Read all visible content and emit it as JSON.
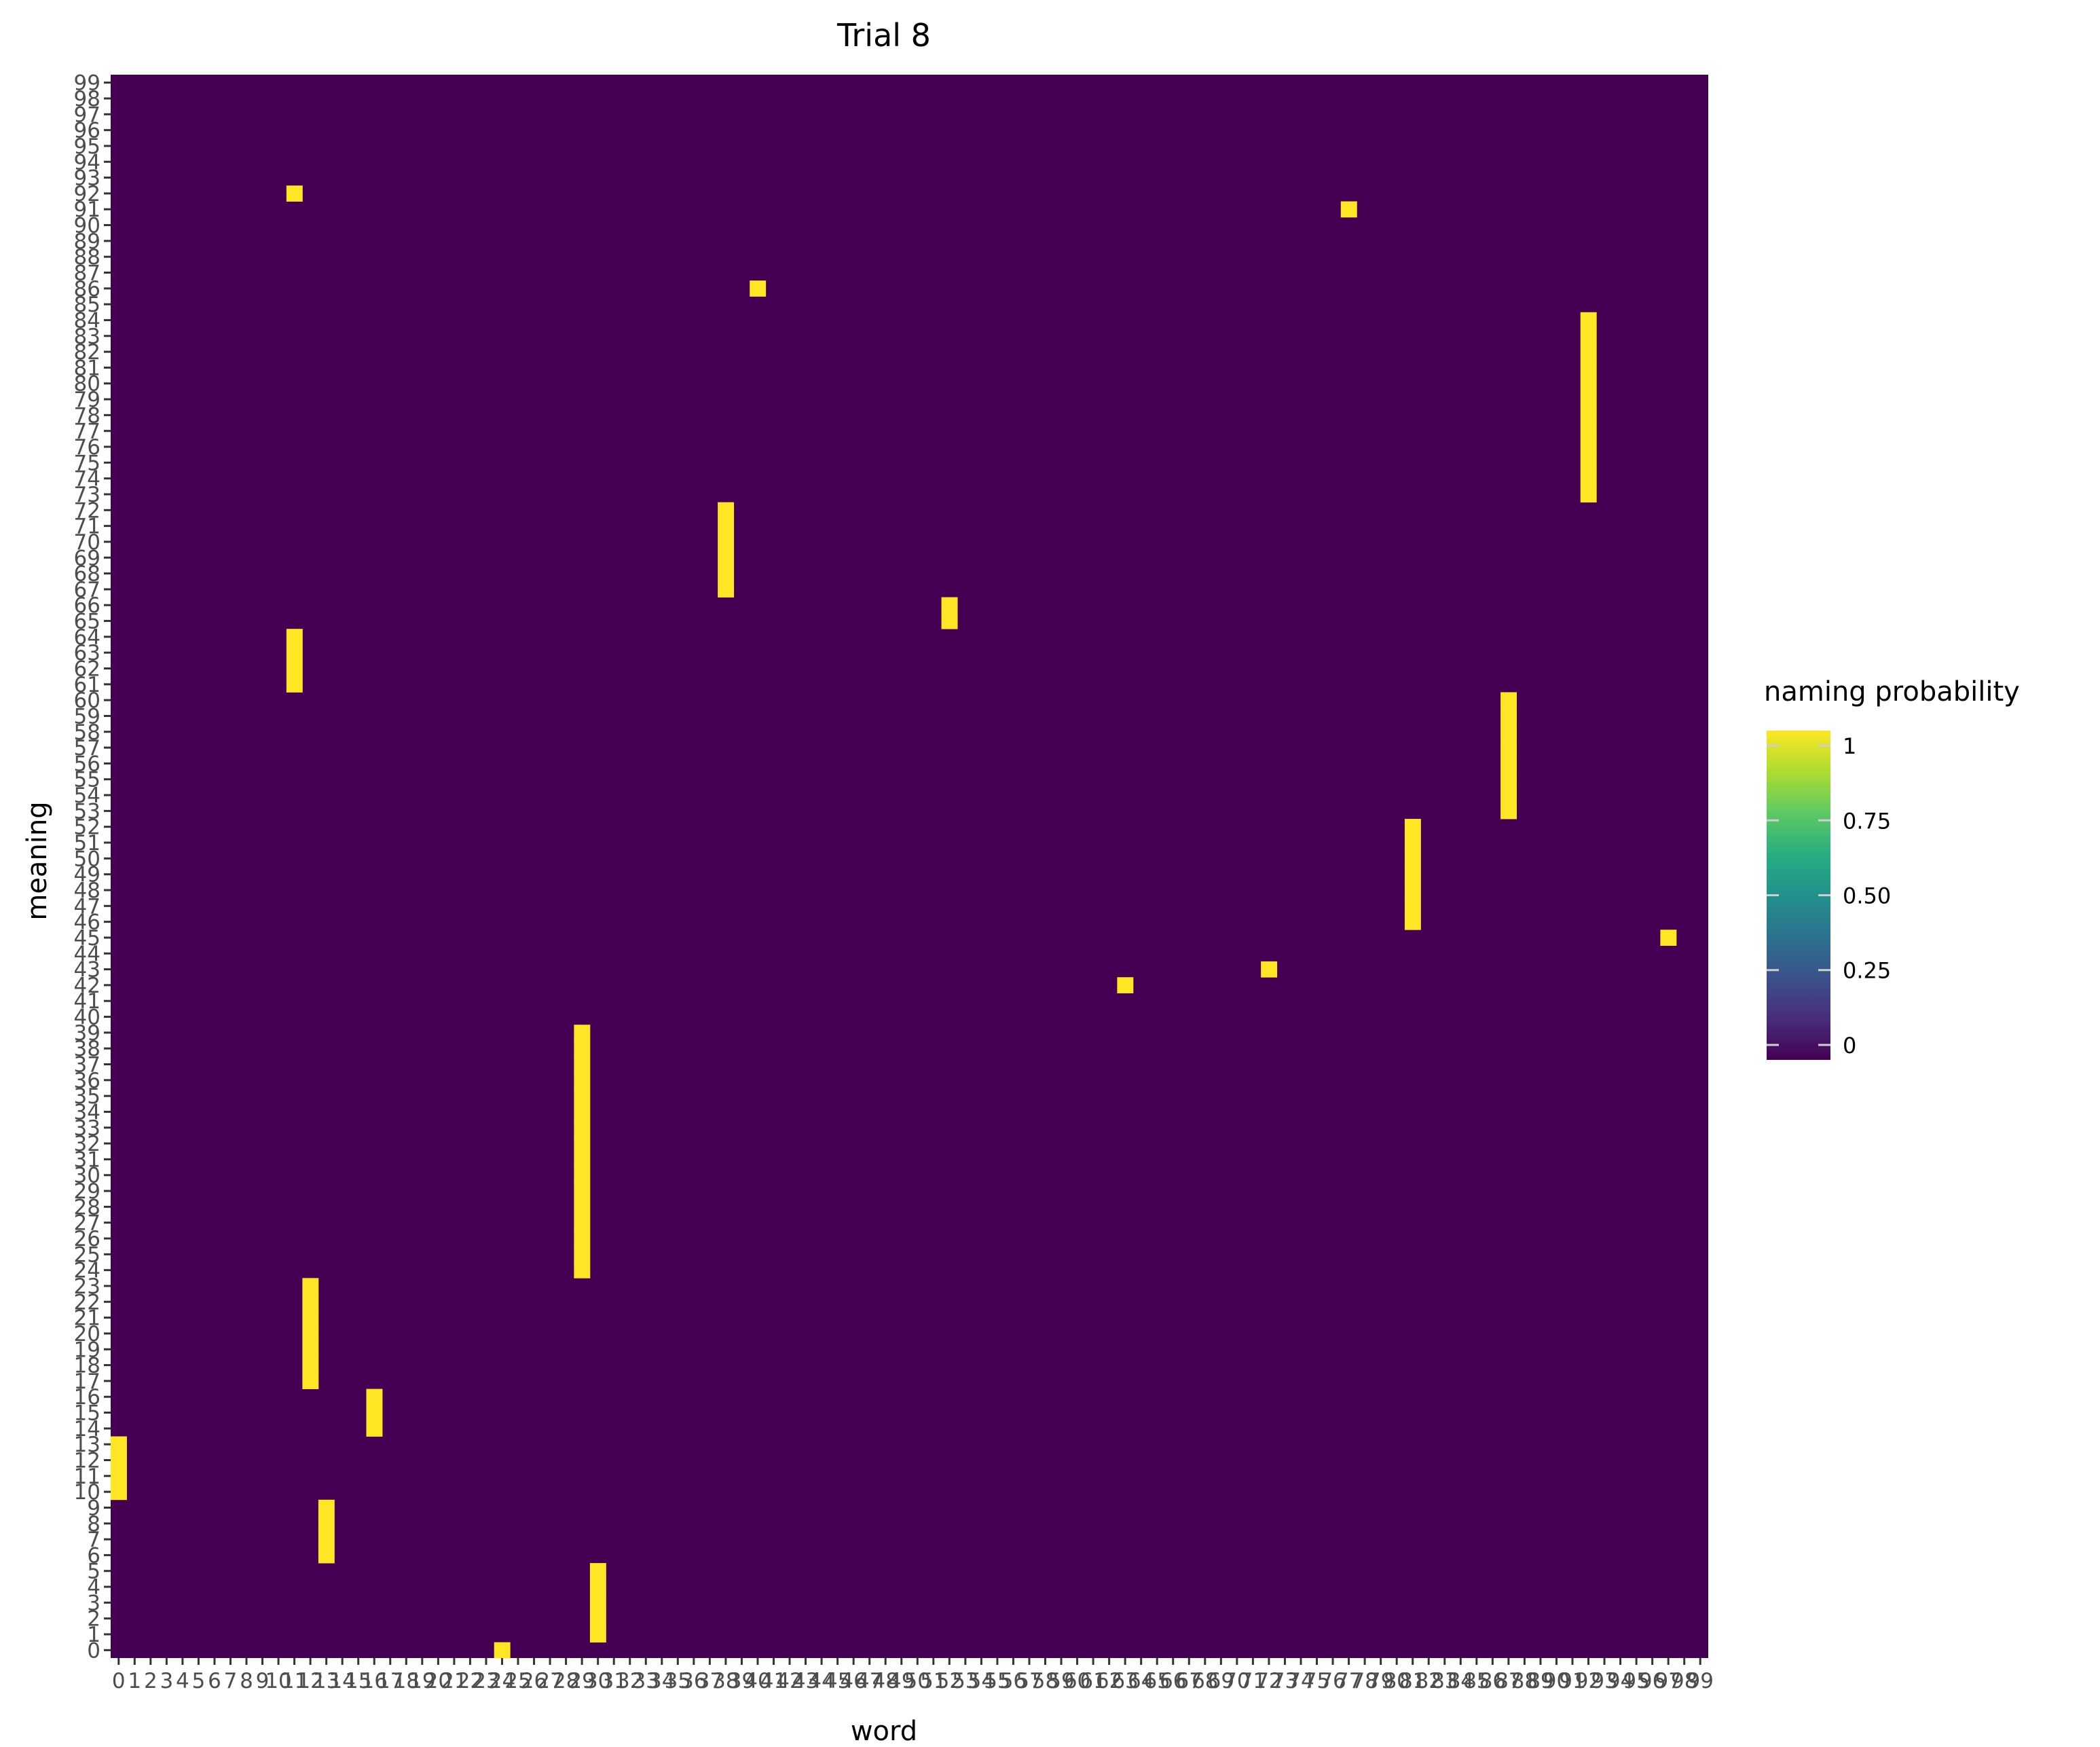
{
  "chart_data": {
    "type": "heatmap",
    "title": "Trial 8",
    "xlabel": "word",
    "ylabel": "meaning",
    "x_categories": [
      0,
      1,
      2,
      3,
      4,
      5,
      6,
      7,
      8,
      9,
      10,
      11,
      12,
      13,
      14,
      15,
      16,
      17,
      18,
      19,
      20,
      21,
      22,
      23,
      24,
      25,
      26,
      27,
      28,
      29,
      30,
      31,
      32,
      33,
      34,
      35,
      36,
      37,
      38,
      39,
      40,
      41,
      42,
      43,
      44,
      45,
      46,
      47,
      48,
      49,
      50,
      51,
      52,
      53,
      54,
      55,
      56,
      57,
      58,
      59,
      60,
      61,
      62,
      63,
      64,
      65,
      66,
      67,
      68,
      69,
      70,
      71,
      72,
      73,
      74,
      75,
      76,
      77,
      78,
      79,
      80,
      81,
      82,
      83,
      84,
      85,
      86,
      87,
      88,
      89,
      90,
      91,
      92,
      93,
      94,
      95,
      96,
      97,
      98,
      99
    ],
    "y_categories": [
      0,
      1,
      2,
      3,
      4,
      5,
      6,
      7,
      8,
      9,
      10,
      11,
      12,
      13,
      14,
      15,
      16,
      17,
      18,
      19,
      20,
      21,
      22,
      23,
      24,
      25,
      26,
      27,
      28,
      29,
      30,
      31,
      32,
      33,
      34,
      35,
      36,
      37,
      38,
      39,
      40,
      41,
      42,
      43,
      44,
      45,
      46,
      47,
      48,
      49,
      50,
      51,
      52,
      53,
      54,
      55,
      56,
      57,
      58,
      59,
      60,
      61,
      62,
      63,
      64,
      65,
      66,
      67,
      68,
      69,
      70,
      71,
      72,
      73,
      74,
      75,
      76,
      77,
      78,
      79,
      80,
      81,
      82,
      83,
      84,
      85,
      86,
      87,
      88,
      89,
      90,
      91,
      92,
      93,
      94,
      95,
      96,
      97,
      98,
      99
    ],
    "default_value": 0,
    "nonzero_cells": [
      {
        "word": 24,
        "meaning": 0,
        "value": 1
      },
      {
        "word": 30,
        "meaning": 1,
        "value": 1
      },
      {
        "word": 30,
        "meaning": 2,
        "value": 1
      },
      {
        "word": 30,
        "meaning": 3,
        "value": 1
      },
      {
        "word": 30,
        "meaning": 4,
        "value": 1
      },
      {
        "word": 30,
        "meaning": 5,
        "value": 1
      },
      {
        "word": 13,
        "meaning": 6,
        "value": 1
      },
      {
        "word": 13,
        "meaning": 7,
        "value": 1
      },
      {
        "word": 13,
        "meaning": 8,
        "value": 1
      },
      {
        "word": 13,
        "meaning": 9,
        "value": 1
      },
      {
        "word": 0,
        "meaning": 10,
        "value": 1
      },
      {
        "word": 0,
        "meaning": 11,
        "value": 1
      },
      {
        "word": 0,
        "meaning": 12,
        "value": 1
      },
      {
        "word": 0,
        "meaning": 13,
        "value": 1
      },
      {
        "word": 16,
        "meaning": 14,
        "value": 1
      },
      {
        "word": 16,
        "meaning": 15,
        "value": 1
      },
      {
        "word": 16,
        "meaning": 16,
        "value": 1
      },
      {
        "word": 12,
        "meaning": 17,
        "value": 1
      },
      {
        "word": 12,
        "meaning": 18,
        "value": 1
      },
      {
        "word": 12,
        "meaning": 19,
        "value": 1
      },
      {
        "word": 12,
        "meaning": 20,
        "value": 1
      },
      {
        "word": 12,
        "meaning": 21,
        "value": 1
      },
      {
        "word": 12,
        "meaning": 22,
        "value": 1
      },
      {
        "word": 12,
        "meaning": 23,
        "value": 1
      },
      {
        "word": 29,
        "meaning": 24,
        "value": 1
      },
      {
        "word": 29,
        "meaning": 25,
        "value": 1
      },
      {
        "word": 29,
        "meaning": 26,
        "value": 1
      },
      {
        "word": 29,
        "meaning": 27,
        "value": 1
      },
      {
        "word": 29,
        "meaning": 28,
        "value": 1
      },
      {
        "word": 29,
        "meaning": 29,
        "value": 1
      },
      {
        "word": 29,
        "meaning": 30,
        "value": 1
      },
      {
        "word": 29,
        "meaning": 31,
        "value": 1
      },
      {
        "word": 29,
        "meaning": 32,
        "value": 1
      },
      {
        "word": 29,
        "meaning": 33,
        "value": 1
      },
      {
        "word": 29,
        "meaning": 34,
        "value": 1
      },
      {
        "word": 29,
        "meaning": 35,
        "value": 1
      },
      {
        "word": 29,
        "meaning": 36,
        "value": 1
      },
      {
        "word": 29,
        "meaning": 37,
        "value": 1
      },
      {
        "word": 29,
        "meaning": 38,
        "value": 1
      },
      {
        "word": 29,
        "meaning": 39,
        "value": 1
      },
      {
        "word": 63,
        "meaning": 42,
        "value": 1
      },
      {
        "word": 72,
        "meaning": 43,
        "value": 1
      },
      {
        "word": 97,
        "meaning": 45,
        "value": 1
      },
      {
        "word": 81,
        "meaning": 46,
        "value": 1
      },
      {
        "word": 81,
        "meaning": 47,
        "value": 1
      },
      {
        "word": 81,
        "meaning": 48,
        "value": 1
      },
      {
        "word": 81,
        "meaning": 49,
        "value": 1
      },
      {
        "word": 81,
        "meaning": 50,
        "value": 1
      },
      {
        "word": 81,
        "meaning": 51,
        "value": 1
      },
      {
        "word": 81,
        "meaning": 52,
        "value": 1
      },
      {
        "word": 87,
        "meaning": 53,
        "value": 1
      },
      {
        "word": 87,
        "meaning": 54,
        "value": 1
      },
      {
        "word": 87,
        "meaning": 55,
        "value": 1
      },
      {
        "word": 87,
        "meaning": 56,
        "value": 1
      },
      {
        "word": 87,
        "meaning": 57,
        "value": 1
      },
      {
        "word": 87,
        "meaning": 58,
        "value": 1
      },
      {
        "word": 87,
        "meaning": 59,
        "value": 1
      },
      {
        "word": 87,
        "meaning": 60,
        "value": 1
      },
      {
        "word": 11,
        "meaning": 61,
        "value": 1
      },
      {
        "word": 11,
        "meaning": 62,
        "value": 1
      },
      {
        "word": 11,
        "meaning": 63,
        "value": 1
      },
      {
        "word": 11,
        "meaning": 64,
        "value": 1
      },
      {
        "word": 52,
        "meaning": 65,
        "value": 1
      },
      {
        "word": 52,
        "meaning": 66,
        "value": 1
      },
      {
        "word": 38,
        "meaning": 67,
        "value": 1
      },
      {
        "word": 38,
        "meaning": 68,
        "value": 1
      },
      {
        "word": 38,
        "meaning": 69,
        "value": 1
      },
      {
        "word": 38,
        "meaning": 70,
        "value": 1
      },
      {
        "word": 38,
        "meaning": 71,
        "value": 1
      },
      {
        "word": 38,
        "meaning": 72,
        "value": 1
      },
      {
        "word": 92,
        "meaning": 73,
        "value": 1
      },
      {
        "word": 92,
        "meaning": 74,
        "value": 1
      },
      {
        "word": 92,
        "meaning": 75,
        "value": 1
      },
      {
        "word": 92,
        "meaning": 76,
        "value": 1
      },
      {
        "word": 92,
        "meaning": 77,
        "value": 1
      },
      {
        "word": 92,
        "meaning": 78,
        "value": 1
      },
      {
        "word": 92,
        "meaning": 79,
        "value": 1
      },
      {
        "word": 92,
        "meaning": 80,
        "value": 1
      },
      {
        "word": 92,
        "meaning": 81,
        "value": 1
      },
      {
        "word": 92,
        "meaning": 82,
        "value": 1
      },
      {
        "word": 92,
        "meaning": 83,
        "value": 1
      },
      {
        "word": 92,
        "meaning": 84,
        "value": 1
      },
      {
        "word": 40,
        "meaning": 86,
        "value": 1
      },
      {
        "word": 77,
        "meaning": 91,
        "value": 1
      },
      {
        "word": 11,
        "meaning": 92,
        "value": 1
      }
    ],
    "colorscale": {
      "name": "viridis",
      "low": "#440154",
      "high": "#FDE725",
      "stops": [
        {
          "v": 0,
          "color": "#440154"
        },
        {
          "v": 0.125,
          "color": "#472D7B"
        },
        {
          "v": 0.25,
          "color": "#3B528B"
        },
        {
          "v": 0.375,
          "color": "#2C728E"
        },
        {
          "v": 0.5,
          "color": "#21918C"
        },
        {
          "v": 0.625,
          "color": "#28AE80"
        },
        {
          "v": 0.75,
          "color": "#5EC962"
        },
        {
          "v": 0.875,
          "color": "#ADDC30"
        },
        {
          "v": 1,
          "color": "#FDE725"
        }
      ]
    },
    "legend": {
      "title": "naming probability",
      "ticks": [
        {
          "value": 0,
          "label": "0"
        },
        {
          "value": 0.25,
          "label": "0.25"
        },
        {
          "value": 0.5,
          "label": "0.50"
        },
        {
          "value": 0.75,
          "label": "0.75"
        },
        {
          "value": 1,
          "label": "1"
        }
      ],
      "placement": "right"
    },
    "grid": false
  },
  "colors": {
    "background": "#ffffff",
    "tick_text": "#4d4d4d",
    "tick_mark": "#333333",
    "title_text": "#000000"
  }
}
